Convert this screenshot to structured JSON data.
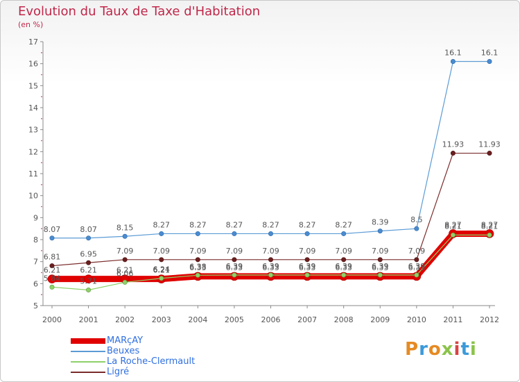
{
  "header": {
    "title": "Evolution du Taux de Taxe d'Habitation",
    "unit": "(en %)"
  },
  "brand": {
    "logo_text": "Proxiti"
  },
  "chart_data": {
    "type": "line",
    "title": "Evolution du Taux de Taxe d'Habitation",
    "ylabel": "(en %)",
    "xlabel": "",
    "ylim": [
      5,
      17
    ],
    "yticks": [
      5,
      6,
      7,
      8,
      9,
      10,
      11,
      12,
      13,
      14,
      15,
      16,
      17
    ],
    "grid": false,
    "legend_position": "bottom-left",
    "categories": [
      "2000",
      "2001",
      "2002",
      "2003",
      "2004",
      "2005",
      "2006",
      "2007",
      "2008",
      "2009",
      "2010",
      "2011",
      "2012"
    ],
    "series": [
      {
        "name": "MARçAY",
        "color": "#e00000",
        "values": [
          6.21,
          6.21,
          6.21,
          6.21,
          6.33,
          6.33,
          6.33,
          6.33,
          6.33,
          6.33,
          6.33,
          8.27,
          8.27
        ],
        "labels": [
          "6.21",
          "6.21",
          "6.21",
          "6.21",
          "6.33",
          "6.33",
          "6.33",
          "6.33",
          "6.33",
          "6.33",
          "6.33",
          "8.27",
          "8.27"
        ]
      },
      {
        "name": "Beuxes",
        "color": "#5b9bd5",
        "values": [
          8.07,
          8.07,
          8.15,
          8.27,
          8.27,
          8.27,
          8.27,
          8.27,
          8.27,
          8.39,
          8.5,
          16.1,
          16.1
        ],
        "labels": [
          "8.07",
          "8.07",
          "8.15",
          "8.27",
          "8.27",
          "8.27",
          "8.27",
          "8.27",
          "8.27",
          "8.39",
          "8.5",
          "16.1",
          "16.1"
        ]
      },
      {
        "name": "La Roche-Clermault",
        "color": "#8fd16a",
        "values": [
          5.84,
          5.71,
          6.06,
          6.24,
          6.38,
          6.39,
          6.39,
          6.39,
          6.39,
          6.39,
          6.39,
          8.21,
          8.21
        ],
        "labels": [
          "5.84",
          "5.71",
          "6.06",
          "6.24",
          "6.38",
          "6.39",
          "6.39",
          "6.39",
          "6.39",
          "6.39",
          "6.39",
          "8.21",
          "8.21"
        ]
      },
      {
        "name": "Ligré",
        "color": "#7a2b2b",
        "values": [
          6.81,
          6.95,
          7.09,
          7.09,
          7.09,
          7.09,
          7.09,
          7.09,
          7.09,
          7.09,
          7.09,
          11.93,
          11.93
        ],
        "labels": [
          "6.81",
          "6.95",
          "7.09",
          "7.09",
          "7.09",
          "7.09",
          "7.09",
          "7.09",
          "7.09",
          "7.09",
          "7.09",
          "11.93",
          "11.93"
        ]
      }
    ]
  }
}
